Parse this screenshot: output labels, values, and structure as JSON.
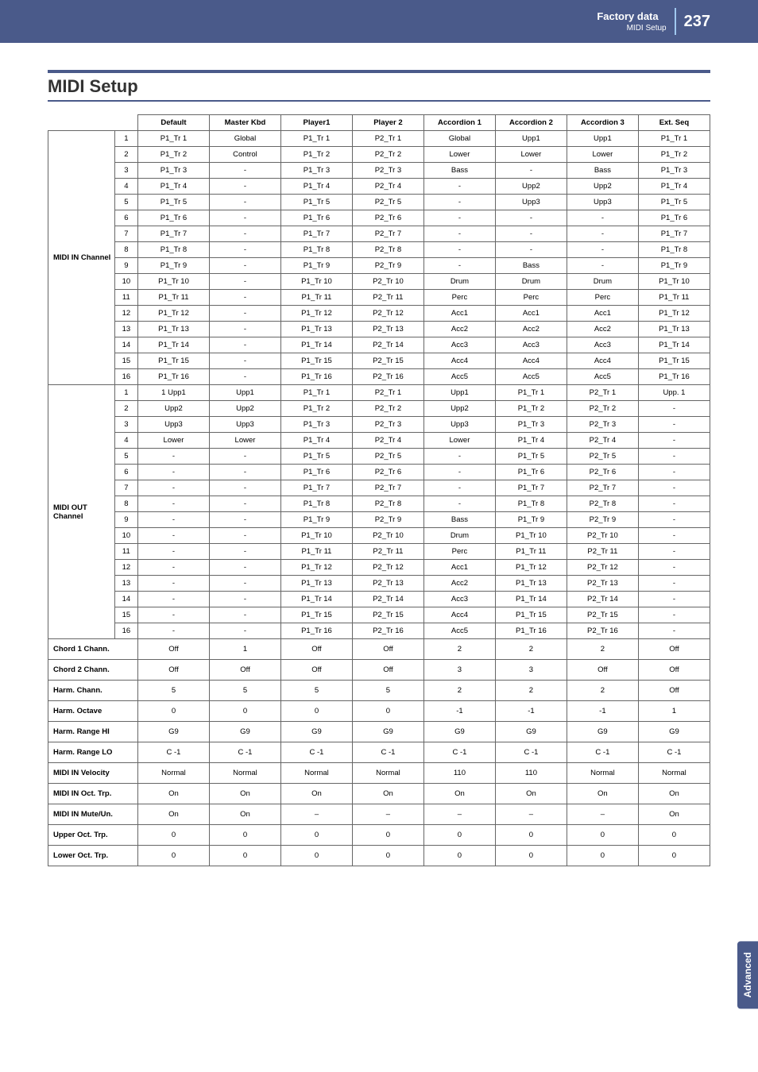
{
  "header": {
    "title": "Factory data",
    "subtitle": "MIDI Setup",
    "page": "237"
  },
  "section_title": "MIDI Setup",
  "side_tab": "Advanced",
  "table": {
    "columns": [
      "Default",
      "Master Kbd",
      "Player1",
      "Player 2",
      "Accordion 1",
      "Accordion 2",
      "Accordion 3",
      "Ext. Seq"
    ],
    "midi_in_label": "MIDI IN Channel",
    "midi_in_rows": [
      [
        "1",
        "P1_Tr 1",
        "Global",
        "P1_Tr 1",
        "P2_Tr 1",
        "Global",
        "Upp1",
        "Upp1",
        "P1_Tr 1"
      ],
      [
        "2",
        "P1_Tr 2",
        "Control",
        "P1_Tr 2",
        "P2_Tr 2",
        "Lower",
        "Lower",
        "Lower",
        "P1_Tr 2"
      ],
      [
        "3",
        "P1_Tr 3",
        "-",
        "P1_Tr 3",
        "P2_Tr 3",
        "Bass",
        "-",
        "Bass",
        "P1_Tr 3"
      ],
      [
        "4",
        "P1_Tr 4",
        "-",
        "P1_Tr 4",
        "P2_Tr 4",
        "-",
        "Upp2",
        "Upp2",
        "P1_Tr 4"
      ],
      [
        "5",
        "P1_Tr 5",
        "-",
        "P1_Tr 5",
        "P2_Tr 5",
        "-",
        "Upp3",
        "Upp3",
        "P1_Tr 5"
      ],
      [
        "6",
        "P1_Tr 6",
        "-",
        "P1_Tr 6",
        "P2_Tr 6",
        "-",
        "-",
        "-",
        "P1_Tr 6"
      ],
      [
        "7",
        "P1_Tr 7",
        "-",
        "P1_Tr 7",
        "P2_Tr 7",
        "-",
        "-",
        "-",
        "P1_Tr 7"
      ],
      [
        "8",
        "P1_Tr 8",
        "-",
        "P1_Tr 8",
        "P2_Tr 8",
        "-",
        "-",
        "-",
        "P1_Tr 8"
      ],
      [
        "9",
        "P1_Tr 9",
        "-",
        "P1_Tr 9",
        "P2_Tr 9",
        "-",
        "Bass",
        "-",
        "P1_Tr 9"
      ],
      [
        "10",
        "P1_Tr 10",
        "-",
        "P1_Tr 10",
        "P2_Tr 10",
        "Drum",
        "Drum",
        "Drum",
        "P1_Tr 10"
      ],
      [
        "11",
        "P1_Tr 11",
        "-",
        "P1_Tr 11",
        "P2_Tr 11",
        "Perc",
        "Perc",
        "Perc",
        "P1_Tr 11"
      ],
      [
        "12",
        "P1_Tr 12",
        "-",
        "P1_Tr 12",
        "P2_Tr 12",
        "Acc1",
        "Acc1",
        "Acc1",
        "P1_Tr 12"
      ],
      [
        "13",
        "P1_Tr 13",
        "-",
        "P1_Tr 13",
        "P2_Tr 13",
        "Acc2",
        "Acc2",
        "Acc2",
        "P1_Tr 13"
      ],
      [
        "14",
        "P1_Tr 14",
        "-",
        "P1_Tr 14",
        "P2_Tr 14",
        "Acc3",
        "Acc3",
        "Acc3",
        "P1_Tr 14"
      ],
      [
        "15",
        "P1_Tr 15",
        "-",
        "P1_Tr 15",
        "P2_Tr 15",
        "Acc4",
        "Acc4",
        "Acc4",
        "P1_Tr 15"
      ],
      [
        "16",
        "P1_Tr 16",
        "-",
        "P1_Tr 16",
        "P2_Tr 16",
        "Acc5",
        "Acc5",
        "Acc5",
        "P1_Tr 16"
      ]
    ],
    "midi_out_label": "MIDI OUT Channel",
    "midi_out_rows": [
      [
        "1",
        "1 Upp1",
        "Upp1",
        "P1_Tr 1",
        "P2_Tr 1",
        "Upp1",
        "P1_Tr 1",
        "P2_Tr 1",
        "Upp. 1"
      ],
      [
        "2",
        "Upp2",
        "Upp2",
        "P1_Tr 2",
        "P2_Tr 2",
        "Upp2",
        "P1_Tr 2",
        "P2_Tr 2",
        "-"
      ],
      [
        "3",
        "Upp3",
        "Upp3",
        "P1_Tr 3",
        "P2_Tr 3",
        "Upp3",
        "P1_Tr 3",
        "P2_Tr 3",
        "-"
      ],
      [
        "4",
        "Lower",
        "Lower",
        "P1_Tr 4",
        "P2_Tr 4",
        "Lower",
        "P1_Tr 4",
        "P2_Tr 4",
        "-"
      ],
      [
        "5",
        "-",
        "-",
        "P1_Tr 5",
        "P2_Tr 5",
        "-",
        "P1_Tr 5",
        "P2_Tr 5",
        "-"
      ],
      [
        "6",
        "-",
        "-",
        "P1_Tr 6",
        "P2_Tr 6",
        "-",
        "P1_Tr 6",
        "P2_Tr 6",
        "-"
      ],
      [
        "7",
        "-",
        "-",
        "P1_Tr 7",
        "P2_Tr 7",
        "-",
        "P1_Tr 7",
        "P2_Tr 7",
        "-"
      ],
      [
        "8",
        "-",
        "-",
        "P1_Tr 8",
        "P2_Tr 8",
        "-",
        "P1_Tr 8",
        "P2_Tr 8",
        "-"
      ],
      [
        "9",
        "-",
        "-",
        "P1_Tr 9",
        "P2_Tr 9",
        "Bass",
        "P1_Tr 9",
        "P2_Tr 9",
        "-"
      ],
      [
        "10",
        "-",
        "-",
        "P1_Tr 10",
        "P2_Tr 10",
        "Drum",
        "P1_Tr 10",
        "P2_Tr 10",
        "-"
      ],
      [
        "11",
        "-",
        "-",
        "P1_Tr 11",
        "P2_Tr 11",
        "Perc",
        "P1_Tr 11",
        "P2_Tr 11",
        "-"
      ],
      [
        "12",
        "-",
        "-",
        "P1_Tr 12",
        "P2_Tr 12",
        "Acc1",
        "P1_Tr 12",
        "P2_Tr 12",
        "-"
      ],
      [
        "13",
        "-",
        "-",
        "P1_Tr 13",
        "P2_Tr 13",
        "Acc2",
        "P1_Tr 13",
        "P2_Tr 13",
        "-"
      ],
      [
        "14",
        "-",
        "-",
        "P1_Tr 14",
        "P2_Tr 14",
        "Acc3",
        "P1_Tr 14",
        "P2_Tr 14",
        "-"
      ],
      [
        "15",
        "-",
        "-",
        "P1_Tr 15",
        "P2_Tr 15",
        "Acc4",
        "P1_Tr 15",
        "P2_Tr 15",
        "-"
      ],
      [
        "16",
        "-",
        "-",
        "P1_Tr 16",
        "P2_Tr 16",
        "Acc5",
        "P1_Tr 16",
        "P2_Tr 16",
        "-"
      ]
    ],
    "param_rows": [
      [
        "Chord 1 Chann.",
        "Off",
        "1",
        "Off",
        "Off",
        "2",
        "2",
        "2",
        "Off"
      ],
      [
        "Chord 2 Chann.",
        "Off",
        "Off",
        "Off",
        "Off",
        "3",
        "3",
        "Off",
        "Off"
      ],
      [
        "Harm. Chann.",
        "5",
        "5",
        "5",
        "5",
        "2",
        "2",
        "2",
        "Off"
      ],
      [
        "Harm. Octave",
        "0",
        "0",
        "0",
        "0",
        "-1",
        "-1",
        "-1",
        "1"
      ],
      [
        "Harm. Range HI",
        "G9",
        "G9",
        "G9",
        "G9",
        "G9",
        "G9",
        "G9",
        "G9"
      ],
      [
        "Harm. Range LO",
        "C -1",
        "C -1",
        "C -1",
        "C -1",
        "C -1",
        "C -1",
        "C -1",
        "C -1"
      ],
      [
        "MIDI IN Velocity",
        "Normal",
        "Normal",
        "Normal",
        "Normal",
        "110",
        "110",
        "Normal",
        "Normal"
      ],
      [
        "MIDI IN Oct. Trp.",
        "On",
        "On",
        "On",
        "On",
        "On",
        "On",
        "On",
        "On"
      ],
      [
        "MIDI IN Mute/Un.",
        "On",
        "On",
        "–",
        "–",
        "–",
        "–",
        "–",
        "On"
      ],
      [
        "Upper Oct. Trp.",
        "0",
        "0",
        "0",
        "0",
        "0",
        "0",
        "0",
        "0"
      ],
      [
        "Lower Oct. Trp.",
        "0",
        "0",
        "0",
        "0",
        "0",
        "0",
        "0",
        "0"
      ]
    ]
  }
}
